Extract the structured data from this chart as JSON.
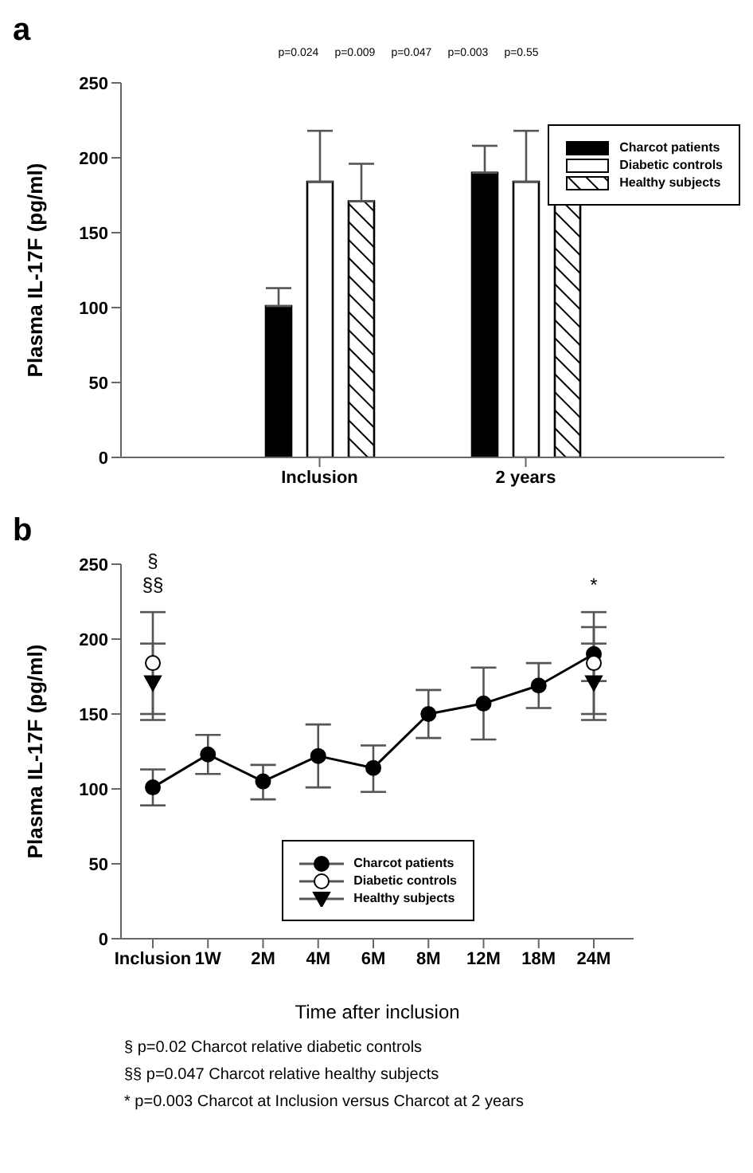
{
  "chart_data": [
    {
      "type": "bar",
      "title": "a",
      "ylabel": "Plasma IL-17F (pg/ml)",
      "categories": [
        "Inclusion",
        "2 years"
      ],
      "series": [
        {
          "name": "Charcot patients",
          "color": "#000000",
          "values": [
            101,
            190
          ],
          "errors": [
            [
              101,
              113
            ],
            [
              190,
              208
            ]
          ]
        },
        {
          "name": "Diabetic controls",
          "color": "#ffffff",
          "values": [
            184,
            184
          ],
          "errors": [
            [
              184,
              218
            ],
            [
              184,
              218
            ]
          ]
        },
        {
          "name": "Healthy subjects",
          "color": "#000000",
          "values": [
            171,
            171
          ],
          "errors": [
            [
              171,
              196
            ],
            [
              171,
              196
            ]
          ]
        }
      ],
      "ylim": [
        0,
        250
      ],
      "yticks": [
        0,
        50,
        100,
        150,
        200,
        250
      ],
      "grid": false,
      "legend": "right",
      "annotations": [
        "p=0.024",
        "p=0.009",
        "p=0.047",
        "p=0.003",
        "p=0.55"
      ]
    },
    {
      "type": "line",
      "title": "b",
      "xlabel": "Time after inclusion",
      "ylabel": "Plasma IL-17F (pg/ml)",
      "categories": [
        "Inclusion",
        "1W",
        "2M",
        "4M",
        "6M",
        "8M",
        "12M",
        "18M",
        "24M"
      ],
      "series": [
        {
          "name": "Charcot patients",
          "color": "#000000",
          "marker": "circle",
          "values": [
            101,
            123,
            105,
            122,
            114,
            150,
            157,
            169,
            190
          ],
          "errors": [
            [
              89,
              113
            ],
            [
              110,
              136
            ],
            [
              93,
              116
            ],
            [
              101,
              143
            ],
            [
              98,
              129
            ],
            [
              134,
              166
            ],
            [
              133,
              181
            ],
            [
              154,
              184
            ],
            [
              172,
              208
            ]
          ]
        },
        {
          "name": "Diabetic controls",
          "type": "scatter",
          "color": "#ffffff",
          "marker": "circle",
          "values": [
            184,
            null,
            null,
            null,
            null,
            null,
            null,
            null,
            184
          ],
          "errors": [
            [
              150,
              218
            ],
            null,
            null,
            null,
            null,
            null,
            null,
            null,
            [
              150,
              218
            ]
          ]
        },
        {
          "name": "Healthy subjects",
          "type": "scatter",
          "color": "#000000",
          "marker": "triangle",
          "values": [
            171,
            null,
            null,
            null,
            null,
            null,
            null,
            null,
            171
          ],
          "errors": [
            [
              146,
              197
            ],
            null,
            null,
            null,
            null,
            null,
            null,
            null,
            [
              146,
              197
            ]
          ]
        }
      ],
      "ylim": [
        0,
        250
      ],
      "yticks": [
        0,
        50,
        100,
        150,
        200,
        250
      ],
      "grid": false,
      "legend": "bottom right",
      "annotations": [
        {
          "text": "§",
          "x": "Inclusion",
          "y": 218
        },
        {
          "text": "§§",
          "x": "Inclusion",
          "y": 218
        },
        {
          "text": "*",
          "x": "24M",
          "y": 218
        },
        "§ p=0.02 Charcot relative diabetic controls",
        "§§ p=0.047 Charcot relative healthy subjects",
        "* p=0.003 Charcot at Inclusion versus Charcot at 2 years"
      ]
    }
  ]
}
